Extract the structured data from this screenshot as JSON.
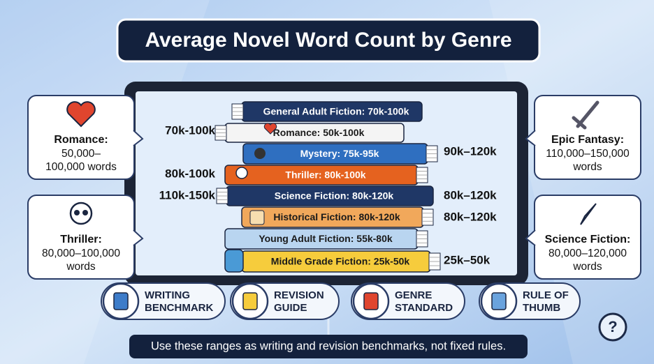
{
  "header": {
    "title": "Average Novel Word Count by Genre"
  },
  "books": [
    "General Adult Fiction: 70k-100k",
    "Romance: 50k-100k",
    "Mystery: 75k-95k",
    "Thriller: 80k-100k",
    "Science Fiction: 80k-120k",
    "Historical Fiction: 80k-120k",
    "Young Adult Fiction: 55k-80k",
    "Middle Grade Fiction: 25k-50k"
  ],
  "side_labels": {
    "left": [
      "70k-100k",
      "80k-100k",
      "110k-150k"
    ],
    "right": [
      "90k–120k",
      "80k–120k",
      "80k–120k",
      "25k–50k"
    ]
  },
  "callouts": [
    {
      "title": "Romance:",
      "lines": [
        "50,000–",
        "100,000 words"
      ]
    },
    {
      "title": "Thriller:",
      "lines": [
        "80,000–100,000",
        "words"
      ]
    },
    {
      "title": "Epic Fantasy:",
      "lines": [
        "110,000–150,000",
        "words"
      ]
    },
    {
      "title": "Science Fiction:",
      "lines": [
        "80,000–120,000",
        "words"
      ]
    }
  ],
  "buttons": [
    {
      "lines": [
        "WRITING",
        "BENCHMARK"
      ]
    },
    {
      "lines": [
        "REVISION",
        "GUIDE"
      ]
    },
    {
      "lines": [
        "GENRE",
        "STANDARD"
      ]
    },
    {
      "lines": [
        "RULE OF",
        "THUMB"
      ]
    }
  ],
  "help": "?",
  "footer": "Use these ranges as writing and revision benchmarks, not fixed rules."
}
